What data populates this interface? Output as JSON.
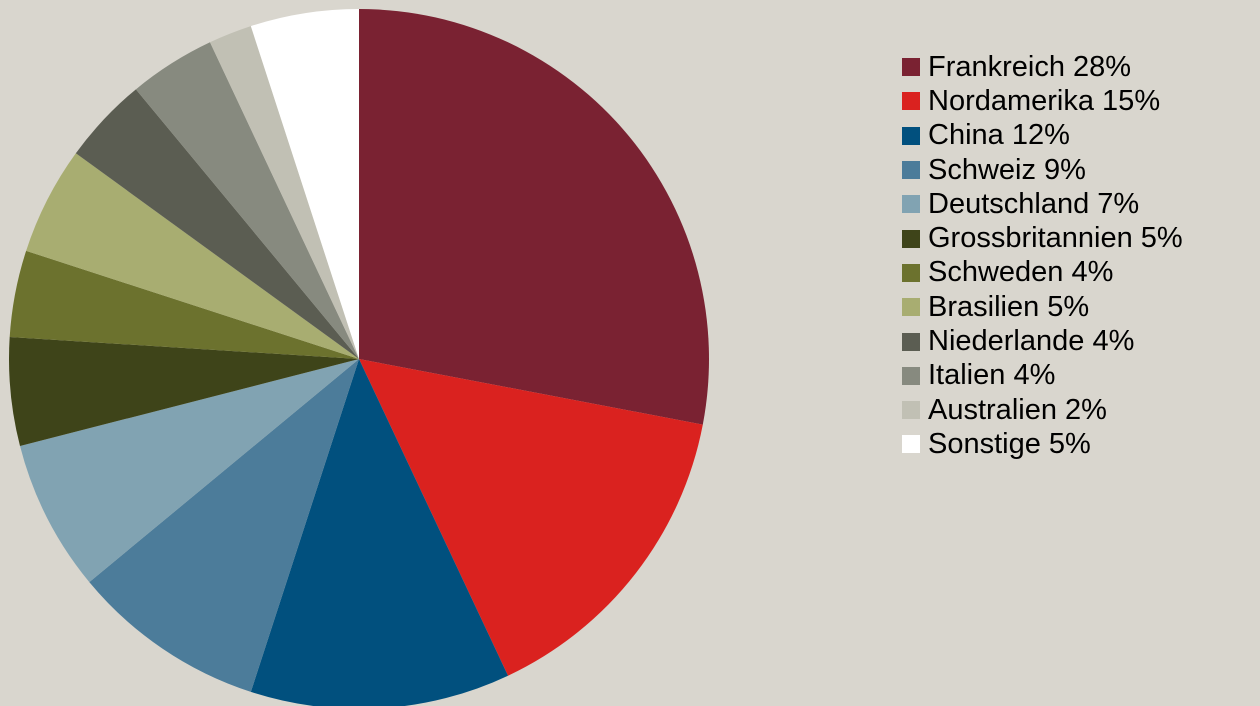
{
  "chart_data": {
    "type": "pie",
    "title": "",
    "start_angle_deg": 0,
    "direction": "clockwise",
    "legend_position": "right",
    "slices": [
      {
        "label": "Frankreich 28%",
        "value": 28,
        "color": "#7a2232"
      },
      {
        "label": "Nordamerika 15%",
        "value": 15,
        "color": "#da221f"
      },
      {
        "label": "China 12%",
        "value": 12,
        "color": "#01507e"
      },
      {
        "label": "Schweiz 9%",
        "value": 9,
        "color": "#4c7c9a"
      },
      {
        "label": "Deutschland 7%",
        "value": 7,
        "color": "#81a3b2"
      },
      {
        "label": "Grossbritannien 5%",
        "value": 5,
        "color": "#3e4419"
      },
      {
        "label": "Schweden 4%",
        "value": 4,
        "color": "#6c722e"
      },
      {
        "label": "Brasilien 5%",
        "value": 5,
        "color": "#a8ad71"
      },
      {
        "label": "Niederlande 4%",
        "value": 4,
        "color": "#5b5d52"
      },
      {
        "label": "Italien 4%",
        "value": 4,
        "color": "#878a7f"
      },
      {
        "label": "Australien 2%",
        "value": 2,
        "color": "#c1c0b4"
      },
      {
        "label": "Sonstige 5%",
        "value": 5,
        "color": "#ffffff"
      }
    ]
  }
}
